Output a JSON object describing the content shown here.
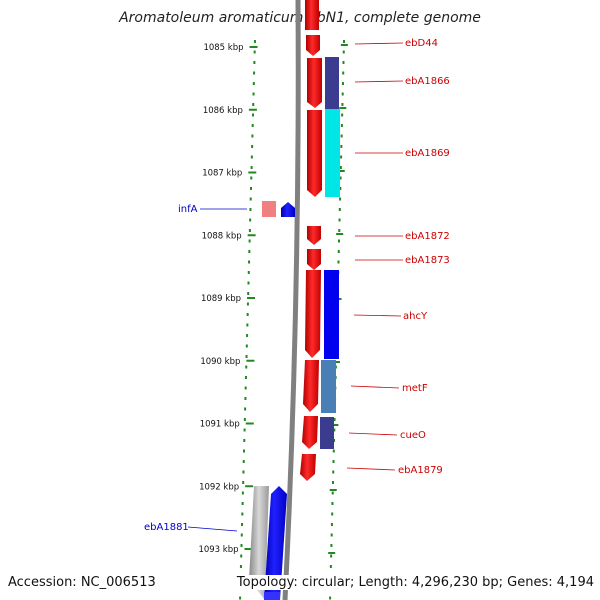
{
  "title": "Aromatoleum aromaticum EbN1, complete genome",
  "footer": {
    "accession": "Accession: NC_006513",
    "summary": "Topology: circular; Length: 4,296,230 bp; Genes: 4,194"
  },
  "ticks": [
    {
      "kbp": 1085,
      "label": "1085 kbp"
    },
    {
      "kbp": 1086,
      "label": "1086 kbp"
    },
    {
      "kbp": 1087,
      "label": "1087 kbp"
    },
    {
      "kbp": 1088,
      "label": "1088 kbp"
    },
    {
      "kbp": 1089,
      "label": "1089 kbp"
    },
    {
      "kbp": 1090,
      "label": "1090 kbp"
    },
    {
      "kbp": 1091,
      "label": "1091 kbp"
    },
    {
      "kbp": 1092,
      "label": "1092 kbp"
    },
    {
      "kbp": 1093,
      "label": "1093 kbp"
    }
  ],
  "genes": [
    {
      "label": "ebD44",
      "strand": "forward",
      "color": "#cc0000"
    },
    {
      "label": "ebA1866",
      "strand": "forward",
      "color": "#cc0000"
    },
    {
      "label": "ebA1869",
      "strand": "forward",
      "color": "#cc0000"
    },
    {
      "label": "infA",
      "strand": "reverse",
      "color": "#0000cc"
    },
    {
      "label": "ebA1872",
      "strand": "forward",
      "color": "#cc0000"
    },
    {
      "label": "ebA1873",
      "strand": "forward",
      "color": "#cc0000"
    },
    {
      "label": "ahcY",
      "strand": "forward",
      "color": "#cc0000"
    },
    {
      "label": "metF",
      "strand": "forward",
      "color": "#cc0000"
    },
    {
      "label": "cueO",
      "strand": "forward",
      "color": "#cc0000"
    },
    {
      "label": "ebA1879",
      "strand": "forward",
      "color": "#cc0000"
    },
    {
      "label": "ebA1881",
      "strand": "reverse",
      "color": "#0000cc"
    }
  ],
  "colors": {
    "forward_cds": "#ee1111",
    "reverse_cds": "#0000ee",
    "backbone": "#808080",
    "gc_ticks": "#228822",
    "cog_navy": "#3b3b8f",
    "cog_cyan": "#00e5e5",
    "cog_blue": "#0000ee",
    "cog_steel": "#4a7fb5",
    "rna_pink": "#f08080"
  }
}
